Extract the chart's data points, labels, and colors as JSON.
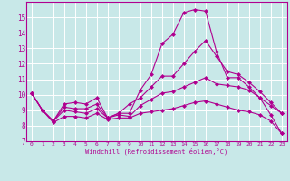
{
  "xlabel": "Windchill (Refroidissement éolien,°C)",
  "x_values": [
    0,
    1,
    2,
    3,
    4,
    5,
    6,
    7,
    8,
    9,
    10,
    11,
    12,
    13,
    14,
    15,
    16,
    17,
    18,
    19,
    20,
    21,
    22,
    23
  ],
  "lines": [
    {
      "y": [
        10.1,
        9.0,
        8.3,
        9.4,
        9.5,
        9.4,
        9.8,
        8.5,
        8.8,
        8.8,
        10.3,
        11.3,
        13.3,
        13.9,
        15.3,
        15.5,
        15.4,
        12.8,
        11.1,
        11.1,
        10.5,
        9.8,
        8.7,
        7.5
      ]
    },
    {
      "y": [
        10.1,
        9.0,
        8.3,
        9.2,
        9.1,
        9.1,
        9.4,
        8.5,
        8.8,
        9.4,
        9.8,
        10.5,
        11.2,
        11.2,
        12.0,
        12.8,
        13.5,
        12.5,
        11.5,
        11.3,
        10.8,
        10.2,
        9.5,
        8.8
      ]
    },
    {
      "y": [
        10.1,
        9.0,
        8.3,
        9.0,
        8.9,
        8.8,
        9.1,
        8.5,
        8.7,
        8.6,
        9.3,
        9.7,
        10.1,
        10.2,
        10.5,
        10.8,
        11.1,
        10.7,
        10.6,
        10.5,
        10.3,
        9.8,
        9.3,
        8.8
      ]
    },
    {
      "y": [
        10.1,
        9.0,
        8.2,
        8.6,
        8.6,
        8.5,
        8.8,
        8.4,
        8.5,
        8.5,
        8.8,
        8.9,
        9.0,
        9.1,
        9.3,
        9.5,
        9.6,
        9.4,
        9.2,
        9.0,
        8.9,
        8.7,
        8.3,
        7.5
      ]
    }
  ],
  "ylim": [
    7,
    16
  ],
  "xlim": [
    -0.5,
    23.5
  ],
  "yticks": [
    7,
    8,
    9,
    10,
    11,
    12,
    13,
    14,
    15
  ],
  "xticks": [
    0,
    1,
    2,
    3,
    4,
    5,
    6,
    7,
    8,
    9,
    10,
    11,
    12,
    13,
    14,
    15,
    16,
    17,
    18,
    19,
    20,
    21,
    22,
    23
  ],
  "bg_color": "#c8e8e8",
  "grid_color": "#ffffff",
  "line_color": "#b0008f",
  "linewidth": 0.8,
  "markersize": 2.0
}
